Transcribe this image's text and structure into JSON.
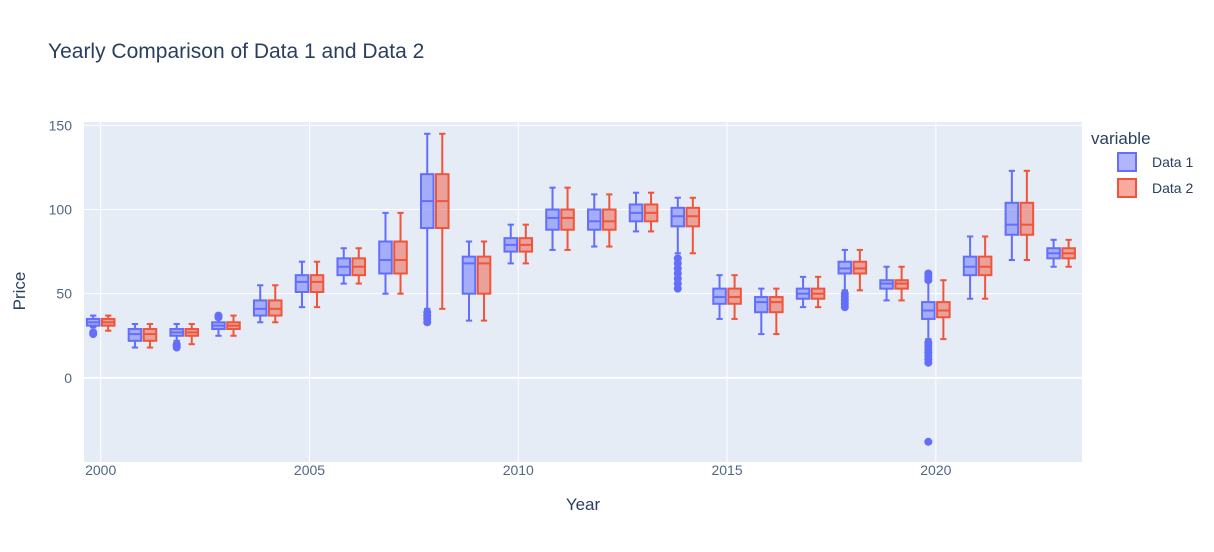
{
  "chart_data": {
    "type": "box",
    "title": "Yearly Comparison of Data 1 and Data 2",
    "xlabel": "Year",
    "ylabel": "Price",
    "xlim": [
      1999.6,
      2023.5
    ],
    "ylim": [
      -50,
      152
    ],
    "x_ticks": [
      2000,
      2005,
      2010,
      2015,
      2020
    ],
    "y_ticks": [
      0,
      50,
      100,
      150
    ],
    "grid": true,
    "legend_position": "right",
    "legend_title": "variable",
    "series": [
      {
        "name": "Data 1",
        "color": "#636efa",
        "boxes": [
          {
            "x": 2000,
            "whisker_low": 30,
            "q1": 31,
            "median": 33,
            "q3": 35,
            "whisker_high": 37,
            "outliers": [
              26,
              27
            ]
          },
          {
            "x": 2001,
            "whisker_low": 18,
            "q1": 22,
            "median": 26,
            "q3": 29,
            "whisker_high": 32,
            "outliers": []
          },
          {
            "x": 2002,
            "whisker_low": 22,
            "q1": 25,
            "median": 27,
            "q3": 29,
            "whisker_high": 32,
            "outliers": [
              18,
              19,
              20
            ]
          },
          {
            "x": 2003,
            "whisker_low": 25,
            "q1": 29,
            "median": 31,
            "q3": 33,
            "whisker_high": 35,
            "outliers": [
              36,
              37
            ]
          },
          {
            "x": 2004,
            "whisker_low": 33,
            "q1": 37,
            "median": 41,
            "q3": 46,
            "whisker_high": 55,
            "outliers": []
          },
          {
            "x": 2005,
            "whisker_low": 42,
            "q1": 51,
            "median": 57,
            "q3": 61,
            "whisker_high": 69,
            "outliers": []
          },
          {
            "x": 2006,
            "whisker_low": 56,
            "q1": 61,
            "median": 66,
            "q3": 71,
            "whisker_high": 77,
            "outliers": []
          },
          {
            "x": 2007,
            "whisker_low": 50,
            "q1": 62,
            "median": 70,
            "q3": 81,
            "whisker_high": 98,
            "outliers": []
          },
          {
            "x": 2008,
            "whisker_low": 41,
            "q1": 89,
            "median": 105,
            "q3": 121,
            "whisker_high": 145,
            "outliers": [
              33,
              35,
              37,
              39
            ]
          },
          {
            "x": 2009,
            "whisker_low": 34,
            "q1": 50,
            "median": 68,
            "q3": 72,
            "whisker_high": 81,
            "outliers": []
          },
          {
            "x": 2010,
            "whisker_low": 68,
            "q1": 75,
            "median": 79,
            "q3": 83,
            "whisker_high": 91,
            "outliers": []
          },
          {
            "x": 2011,
            "whisker_low": 76,
            "q1": 88,
            "median": 95,
            "q3": 100,
            "whisker_high": 113,
            "outliers": []
          },
          {
            "x": 2012,
            "whisker_low": 78,
            "q1": 88,
            "median": 93,
            "q3": 100,
            "whisker_high": 109,
            "outliers": []
          },
          {
            "x": 2013,
            "whisker_low": 87,
            "q1": 93,
            "median": 98,
            "q3": 103,
            "whisker_high": 110,
            "outliers": []
          },
          {
            "x": 2014,
            "whisker_low": 74,
            "q1": 90,
            "median": 96,
            "q3": 101,
            "whisker_high": 107,
            "outliers": [
              53,
              56,
              59,
              62,
              65,
              68,
              71
            ]
          },
          {
            "x": 2015,
            "whisker_low": 35,
            "q1": 44,
            "median": 48,
            "q3": 53,
            "whisker_high": 61,
            "outliers": []
          },
          {
            "x": 2016,
            "whisker_low": 26,
            "q1": 39,
            "median": 45,
            "q3": 48,
            "whisker_high": 53,
            "outliers": []
          },
          {
            "x": 2017,
            "whisker_low": 42,
            "q1": 47,
            "median": 50,
            "q3": 53,
            "whisker_high": 60,
            "outliers": []
          },
          {
            "x": 2018,
            "whisker_low": 52,
            "q1": 62,
            "median": 65,
            "q3": 69,
            "whisker_high": 76,
            "outliers": [
              42,
              44,
              46,
              48,
              50
            ]
          },
          {
            "x": 2019,
            "whisker_low": 46,
            "q1": 53,
            "median": 56,
            "q3": 58,
            "whisker_high": 66,
            "outliers": []
          },
          {
            "x": 2020,
            "whisker_low": 23,
            "q1": 35,
            "median": 40,
            "q3": 45,
            "whisker_high": 58,
            "outliers": [
              -38,
              9,
              11,
              13,
              15,
              17,
              19,
              21,
              58,
              60,
              62
            ]
          },
          {
            "x": 2021,
            "whisker_low": 47,
            "q1": 61,
            "median": 66,
            "q3": 72,
            "whisker_high": 84,
            "outliers": []
          },
          {
            "x": 2022,
            "whisker_low": 70,
            "q1": 85,
            "median": 91,
            "q3": 104,
            "whisker_high": 123,
            "outliers": []
          },
          {
            "x": 2023,
            "whisker_low": 66,
            "q1": 71,
            "median": 74,
            "q3": 77,
            "whisker_high": 82,
            "outliers": []
          }
        ]
      },
      {
        "name": "Data 2",
        "color": "#ef553b",
        "boxes": [
          {
            "x": 2000,
            "whisker_low": 28,
            "q1": 31,
            "median": 33,
            "q3": 35,
            "whisker_high": 37,
            "outliers": []
          },
          {
            "x": 2001,
            "whisker_low": 18,
            "q1": 22,
            "median": 26,
            "q3": 29,
            "whisker_high": 32,
            "outliers": []
          },
          {
            "x": 2002,
            "whisker_low": 20,
            "q1": 25,
            "median": 27,
            "q3": 29,
            "whisker_high": 32,
            "outliers": []
          },
          {
            "x": 2003,
            "whisker_low": 25,
            "q1": 29,
            "median": 31,
            "q3": 33,
            "whisker_high": 37,
            "outliers": []
          },
          {
            "x": 2004,
            "whisker_low": 33,
            "q1": 37,
            "median": 41,
            "q3": 46,
            "whisker_high": 55,
            "outliers": []
          },
          {
            "x": 2005,
            "whisker_low": 42,
            "q1": 51,
            "median": 57,
            "q3": 61,
            "whisker_high": 69,
            "outliers": []
          },
          {
            "x": 2006,
            "whisker_low": 56,
            "q1": 61,
            "median": 66,
            "q3": 71,
            "whisker_high": 77,
            "outliers": []
          },
          {
            "x": 2007,
            "whisker_low": 50,
            "q1": 62,
            "median": 70,
            "q3": 81,
            "whisker_high": 98,
            "outliers": []
          },
          {
            "x": 2008,
            "whisker_low": 41,
            "q1": 89,
            "median": 105,
            "q3": 121,
            "whisker_high": 145,
            "outliers": []
          },
          {
            "x": 2009,
            "whisker_low": 34,
            "q1": 50,
            "median": 68,
            "q3": 72,
            "whisker_high": 81,
            "outliers": []
          },
          {
            "x": 2010,
            "whisker_low": 68,
            "q1": 75,
            "median": 79,
            "q3": 83,
            "whisker_high": 91,
            "outliers": []
          },
          {
            "x": 2011,
            "whisker_low": 76,
            "q1": 88,
            "median": 95,
            "q3": 100,
            "whisker_high": 113,
            "outliers": []
          },
          {
            "x": 2012,
            "whisker_low": 78,
            "q1": 88,
            "median": 93,
            "q3": 100,
            "whisker_high": 109,
            "outliers": []
          },
          {
            "x": 2013,
            "whisker_low": 87,
            "q1": 93,
            "median": 98,
            "q3": 103,
            "whisker_high": 110,
            "outliers": []
          },
          {
            "x": 2014,
            "whisker_low": 74,
            "q1": 90,
            "median": 96,
            "q3": 101,
            "whisker_high": 107,
            "outliers": []
          },
          {
            "x": 2015,
            "whisker_low": 35,
            "q1": 44,
            "median": 48,
            "q3": 53,
            "whisker_high": 61,
            "outliers": []
          },
          {
            "x": 2016,
            "whisker_low": 26,
            "q1": 39,
            "median": 45,
            "q3": 48,
            "whisker_high": 53,
            "outliers": []
          },
          {
            "x": 2017,
            "whisker_low": 42,
            "q1": 47,
            "median": 50,
            "q3": 53,
            "whisker_high": 60,
            "outliers": []
          },
          {
            "x": 2018,
            "whisker_low": 52,
            "q1": 62,
            "median": 65,
            "q3": 69,
            "whisker_high": 76,
            "outliers": []
          },
          {
            "x": 2019,
            "whisker_low": 46,
            "q1": 53,
            "median": 56,
            "q3": 58,
            "whisker_high": 66,
            "outliers": []
          },
          {
            "x": 2020,
            "whisker_low": 23,
            "q1": 36,
            "median": 40,
            "q3": 45,
            "whisker_high": 58,
            "outliers": []
          },
          {
            "x": 2021,
            "whisker_low": 47,
            "q1": 61,
            "median": 66,
            "q3": 72,
            "whisker_high": 84,
            "outliers": []
          },
          {
            "x": 2022,
            "whisker_low": 70,
            "q1": 85,
            "median": 91,
            "q3": 104,
            "whisker_high": 123,
            "outliers": []
          },
          {
            "x": 2023,
            "whisker_low": 66,
            "q1": 71,
            "median": 74,
            "q3": 77,
            "whisker_high": 82,
            "outliers": []
          }
        ]
      }
    ]
  }
}
